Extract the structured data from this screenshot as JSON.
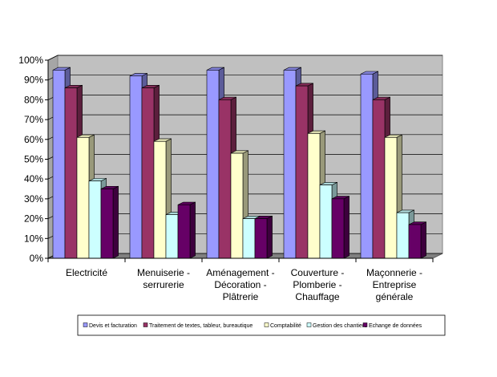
{
  "chart_data": {
    "type": "bar",
    "style": "3d-clustered-column",
    "categories": [
      [
        "Electricité"
      ],
      [
        "Menuiserie -",
        "serrurerie"
      ],
      [
        "Aménagement -",
        "Décoration -",
        "Plâtrerie"
      ],
      [
        "Couverture -",
        "Plomberie -",
        "Chauffage"
      ],
      [
        "Maçonnerie -",
        "Entreprise",
        "générale"
      ]
    ],
    "series": [
      {
        "name": "Devis et facturation",
        "color": "#9999ff",
        "values": [
          95,
          92,
          95,
          95,
          93
        ]
      },
      {
        "name": "Traitement de textes, tableur, bureautique",
        "color": "#993366",
        "values": [
          86,
          86,
          80,
          87,
          80
        ]
      },
      {
        "name": "Comptabilité",
        "color": "#ffffcc",
        "values": [
          61,
          59,
          53,
          63,
          61
        ]
      },
      {
        "name": "Gestion des chantiers",
        "color": "#ccffff",
        "values": [
          39,
          22,
          20,
          37,
          23
        ]
      },
      {
        "name": "Echange de données",
        "color": "#660066",
        "values": [
          35,
          27,
          20,
          30,
          17
        ]
      }
    ],
    "yticks": [
      "0%",
      "10%",
      "20%",
      "30%",
      "40%",
      "50%",
      "60%",
      "70%",
      "80%",
      "90%",
      "100%"
    ],
    "ylim": [
      0,
      100
    ],
    "grid": true,
    "legend_position": "bottom",
    "wall_color": "#c0c0c0",
    "floor_color": "#808080"
  }
}
